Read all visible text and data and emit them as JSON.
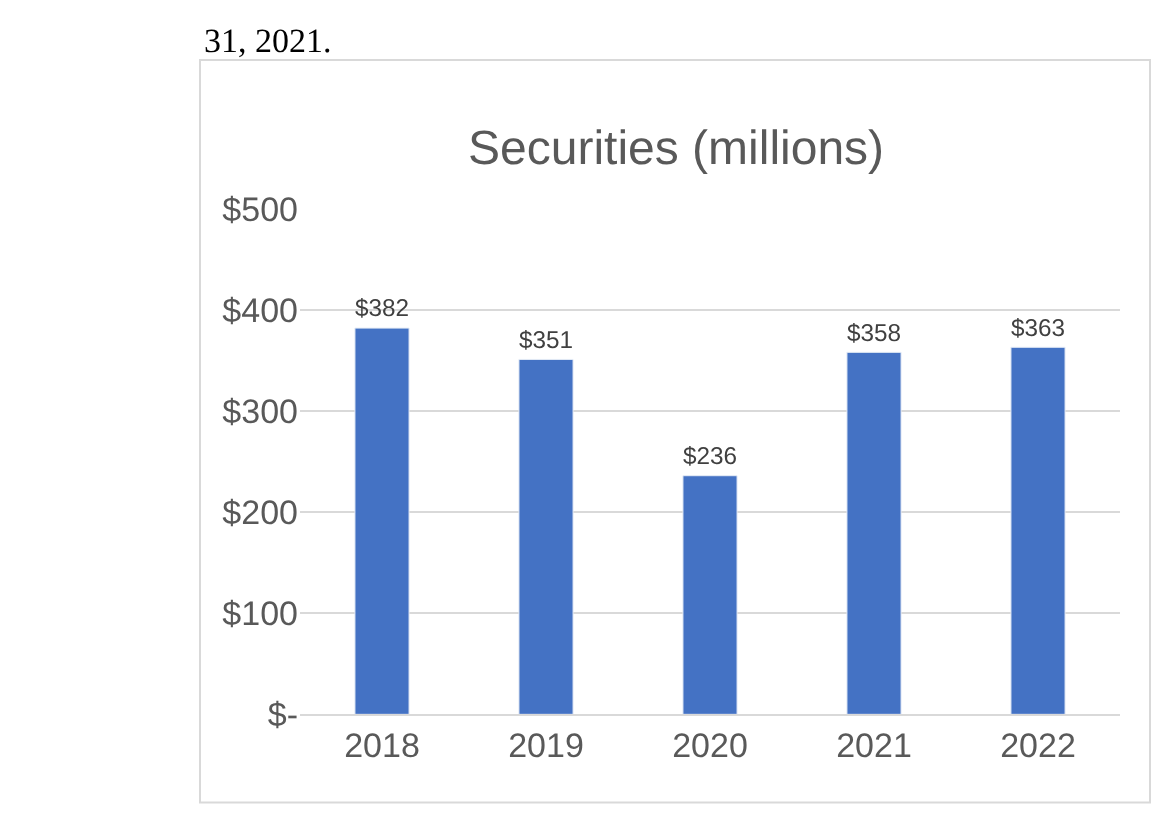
{
  "chart_data": {
    "type": "bar",
    "title": "Securities (millions)",
    "annotations": [
      "31, 2021."
    ],
    "categories": [
      "2018",
      "2019",
      "2020",
      "2021",
      "2022"
    ],
    "values": [
      382,
      351,
      236,
      358,
      363
    ],
    "value_labels": [
      "$382",
      "$351",
      "$236",
      "$358",
      "$363"
    ],
    "color": "#4472c4",
    "ylim": [
      0,
      500
    ],
    "yticks": [
      {
        "value": 0,
        "label": "$-"
      },
      {
        "value": 100,
        "label": "$100"
      },
      {
        "value": 200,
        "label": "$200"
      },
      {
        "value": 300,
        "label": "$300"
      },
      {
        "value": 400,
        "label": "$400"
      },
      {
        "value": 500,
        "label": "$500"
      }
    ],
    "grid": "y",
    "legend": false
  }
}
